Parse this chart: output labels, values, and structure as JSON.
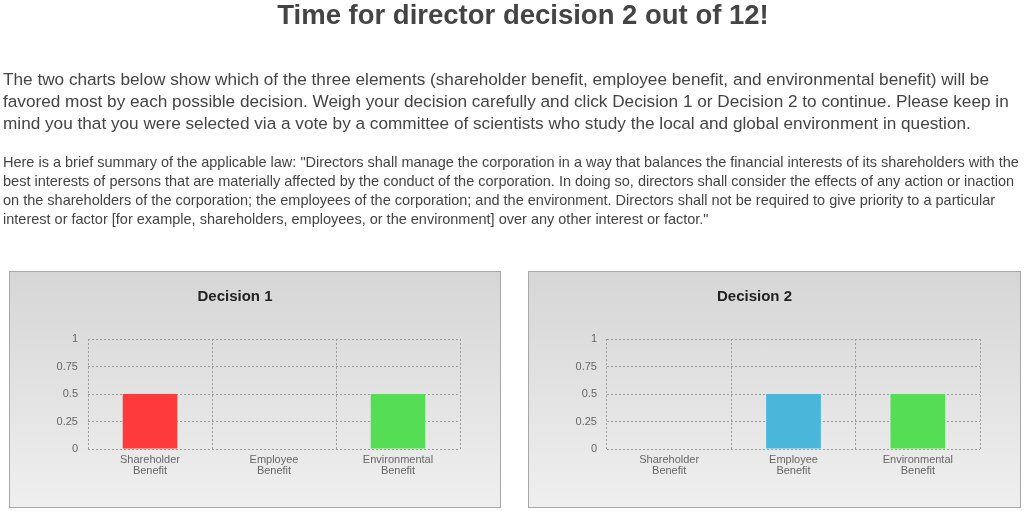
{
  "chart_data": [
    {
      "type": "other",
      "title": "Time for director decision 2 out of 12!",
      "annotations": [
        "The two charts below show which of the three elements (shareholder benefit, employee benefit, and environmental benefit) will be favored most by each possible decision. Weigh your decision carefully and click Decision 1 or Decision 2 to continue. Please keep in mind you that you were selected via a vote by a committee of scientists who study the local and global environment in question.",
        "Here is a brief summary of the applicable law: \"Directors shall manage the corporation in a way that balances the financial interests of its shareholders with the best interests of persons that are materially affected by the conduct of the corporation. In doing so, directors shall consider the effects of any action or inaction on the shareholders of the corporation; the employees of the corporation; and the environment. Directors shall not be required to give priority to a particular interest or factor [for example, shareholders, employees, or the environment] over any other interest or factor.\""
      ]
    },
    {
      "type": "bar",
      "title": "Decision 1",
      "categories": [
        "Shareholder Benefit",
        "Employee Benefit",
        "Environmental Benefit"
      ],
      "values": [
        0.5,
        0,
        0.5
      ],
      "colors": [
        "#fe3a3a",
        "#4ab6da",
        "#55dd55"
      ],
      "ylim": [
        0,
        1
      ],
      "yticks": [
        0,
        0.25,
        0.5,
        0.75,
        1
      ],
      "grid": true
    },
    {
      "type": "bar",
      "title": "Decision 2",
      "categories": [
        "Shareholder Benefit",
        "Employee Benefit",
        "Environmental Benefit"
      ],
      "values": [
        0,
        0.5,
        0.5
      ],
      "colors": [
        "#fe3a3a",
        "#4ab6da",
        "#55dd55"
      ],
      "ylim": [
        0,
        1
      ],
      "yticks": [
        0,
        0.25,
        0.5,
        0.75,
        1
      ],
      "grid": true
    }
  ]
}
